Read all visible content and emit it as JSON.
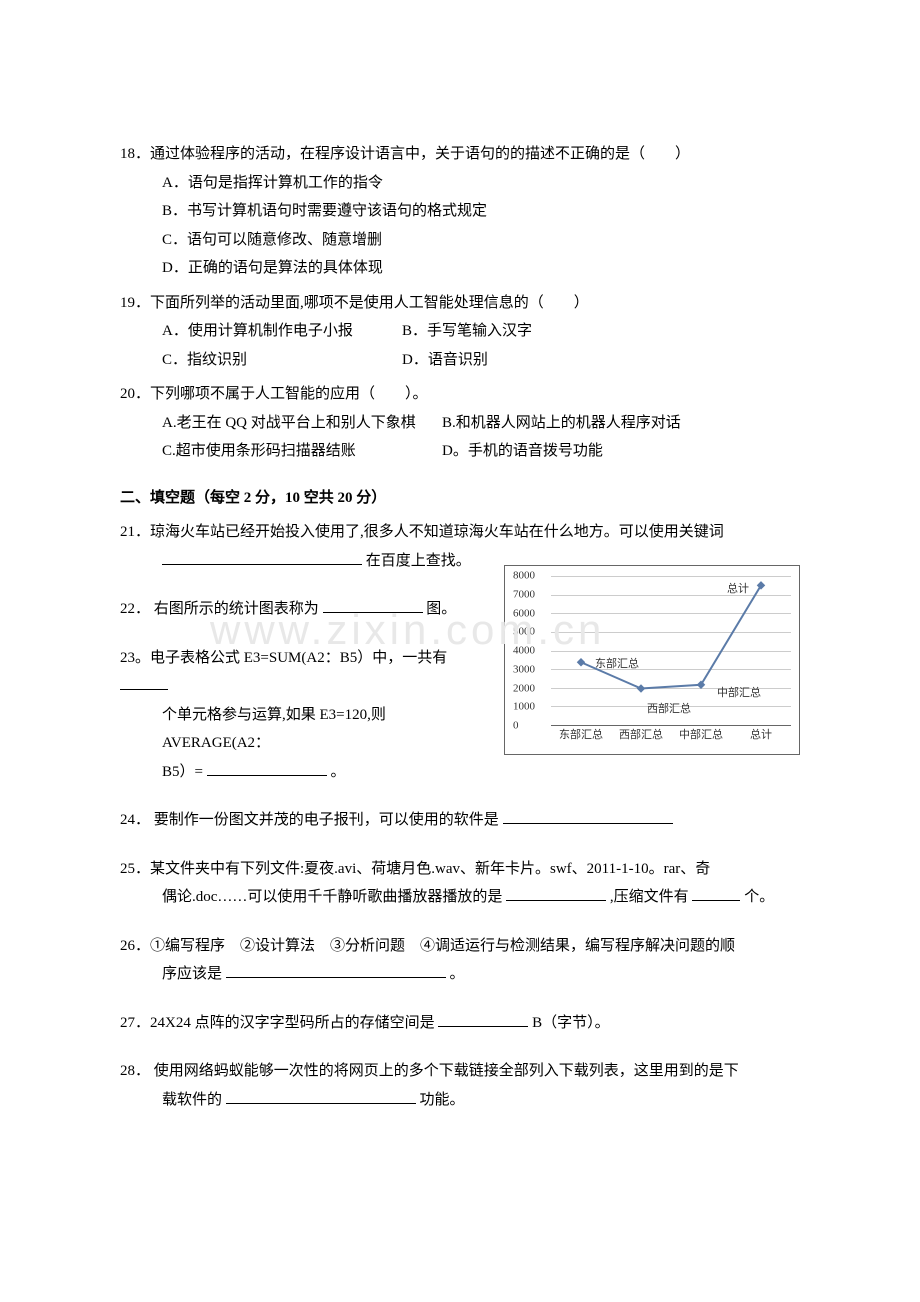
{
  "q18": {
    "stem": "18．通过体验程序的活动，在程序设计语言中，关于语句的的描述不正确的是（　　）",
    "A": "A．语句是指挥计算机工作的指令",
    "B": "B．书写计算机语句时需要遵守该语句的格式规定",
    "C": "C．语句可以随意修改、随意增删",
    "D": "D．正确的语句是算法的具体体现"
  },
  "q19": {
    "stem": "19．下面所列举的活动里面,哪项不是使用人工智能处理信息的（　　）",
    "A": "A．使用计算机制作电子小报",
    "B": "B．手写笔输入汉字",
    "C": "C．指纹识别",
    "D": "D．语音识别"
  },
  "q20": {
    "stem": "20．下列哪项不属于人工智能的应用（　　）。",
    "A": "A.老王在 QQ 对战平台上和别人下象棋",
    "B": "B.和机器人网站上的机器人程序对话",
    "C": "C.超市使用条形码扫描器结账",
    "D": "D。手机的语音拨号功能"
  },
  "section2": "二、填空题（每空 2 分，10 空共 20 分）",
  "q21": {
    "line1": "21．琼海火车站已经开始投入使用了,很多人不知道琼海火车站在什么地方。可以使用关键词",
    "line2_tail": "在百度上查找。"
  },
  "q22": {
    "pre": "22．  右图所示的统计图表称为",
    "post": "图。"
  },
  "q23": {
    "line1": "23。电子表格公式 E3=SUM(A2：B5）中，一共有",
    "line2": "个单元格参与运算,如果 E3=120,则 AVERAGE(A2：",
    "line3_pre": "B5）=",
    "line3_post": "。"
  },
  "q24": {
    "pre": "24．  要制作一份图文并茂的电子报刊，可以使用的软件是"
  },
  "q25": {
    "line1": "25．某文件夹中有下列文件:夏夜.avi、荷塘月色.wav、新年卡片。swf、2011-1-10。rar、奇",
    "line2_pre": "偶论.doc……可以使用千千静听歌曲播放器播放的是",
    "line2_mid": ",压缩文件有",
    "line2_post": "个。"
  },
  "q26": {
    "line1": "26．①编写程序　②设计算法　③分析问题　④调适运行与检测结果，编写程序解决问题的顺",
    "line2_pre": "序应该是",
    "line2_post": "。"
  },
  "q27": {
    "pre": "27．24X24 点阵的汉字字型码所占的存储空间是",
    "post": "B（字节）。"
  },
  "q28": {
    "line1": "28．  使用网络蚂蚁能够一次性的将网页上的多个下载链接全部列入下载列表，这里用到的是下",
    "line2_pre": "载软件的",
    "line2_post": "功能。"
  },
  "watermark": "www.zixin.com.cn",
  "chart": {
    "type": "line",
    "ylim": [
      0,
      8000
    ],
    "ytick_step": 1000,
    "yticks": [
      "0",
      "1000",
      "2000",
      "3000",
      "4000",
      "5000",
      "6000",
      "7000",
      "8000"
    ],
    "categories": [
      "东部汇总",
      "西部汇总",
      "中部汇总",
      "总计"
    ],
    "values": [
      3400,
      2000,
      2200,
      7500
    ],
    "data_labels": [
      "东部汇总",
      "西部汇总",
      "中部汇总",
      "总计"
    ],
    "line_color": "#5b7ba8",
    "marker_color": "#5b7ba8",
    "grid_color": "#cccccc",
    "axis_color": "#666666",
    "background": "#ffffff",
    "font_size": 11
  }
}
